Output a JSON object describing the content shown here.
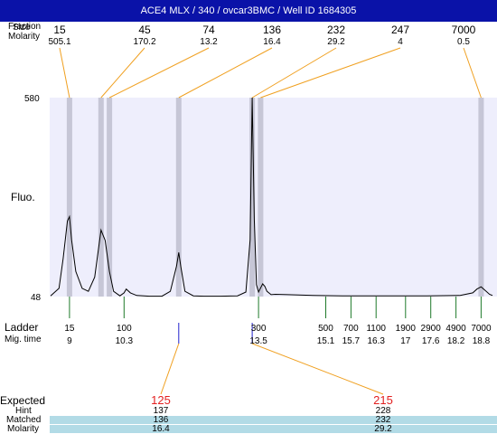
{
  "title": "ACE4 MLX / 340 / ovcar3BMC / Well ID 1684305",
  "header": {
    "row1_label_a": "Fraction",
    "row1_label_b": "Size",
    "row2_label": "Molarity"
  },
  "peaks": [
    {
      "size": "15",
      "molarity": "505.1"
    },
    {
      "size": "45",
      "molarity": "170.2"
    },
    {
      "size": "74",
      "molarity": "13.2"
    },
    {
      "size": "136",
      "molarity": "16.4"
    },
    {
      "size": "232",
      "molarity": "29.2"
    },
    {
      "size": "247",
      "molarity": "4"
    },
    {
      "size": "7000",
      "molarity": "0.5"
    }
  ],
  "y_axis": {
    "label": "Fluo.",
    "max": "580",
    "min": "48"
  },
  "ladder": {
    "label": "Ladder",
    "mig_label": "Mig. time",
    "items": [
      {
        "size": "15",
        "time": "9"
      },
      {
        "size": "100",
        "time": "10.3"
      },
      {
        "size": "300",
        "time": "13.5"
      },
      {
        "size": "500",
        "time": "15.1"
      },
      {
        "size": "700",
        "time": "15.7"
      },
      {
        "size": "1100",
        "time": "16.3"
      },
      {
        "size": "1900",
        "time": "17"
      },
      {
        "size": "2900",
        "time": "17.6"
      },
      {
        "size": "4900",
        "time": "18.2"
      },
      {
        "size": "7000",
        "time": "18.8"
      }
    ]
  },
  "table": {
    "expected_label": "Expected",
    "hint_label": "Hint",
    "matched_label": "Matched",
    "molarity_label": "Molarity",
    "cols": [
      {
        "expected": "125",
        "hint": "137",
        "matched": "136",
        "molarity": "16.4"
      },
      {
        "expected": "215",
        "hint": "228",
        "matched": "232",
        "molarity": "29.2"
      }
    ]
  },
  "colors": {
    "header_bg": "#0a12a8",
    "plot_bg": "#eeeefc",
    "peak_band": "#c6c6d6",
    "connector": "#f0a020",
    "ladder_tick": "#1f7a2a",
    "expected_mark": "#2222cc",
    "expected_text": "#e32020",
    "table_band": "#b2dbe6"
  },
  "chart_data": {
    "type": "line",
    "title": "ACE4 MLX / 340 / ovcar3BMC / Well ID 1684305",
    "ylabel": "Fluo.",
    "xlabel": "Mig. time",
    "ylim": [
      48,
      580
    ],
    "x": [
      8.55,
      8.75,
      8.85,
      8.95,
      9.0,
      9.05,
      9.15,
      9.3,
      9.45,
      9.6,
      9.75,
      9.85,
      9.95,
      10.05,
      10.2,
      10.3,
      10.35,
      10.45,
      10.6,
      10.9,
      11.2,
      11.4,
      11.55,
      11.6,
      11.65,
      11.75,
      11.95,
      12.2,
      12.6,
      13.0,
      13.2,
      13.3,
      13.35,
      13.4,
      13.45,
      13.5,
      13.6,
      13.65,
      13.7,
      13.8,
      13.9,
      14.2,
      14.8,
      15.5,
      16.5,
      17.5,
      18.3,
      18.6,
      18.7,
      18.8,
      18.9,
      19.0,
      19.07
    ],
    "series": [
      {
        "values": [
          50,
          70,
          150,
          250,
          262,
          200,
          115,
          70,
          62,
          100,
          226,
          198,
          115,
          62,
          50,
          58,
          68,
          58,
          51,
          49,
          49,
          62,
          130,
          166,
          128,
          62,
          50,
          49,
          49,
          50,
          60,
          200,
          580,
          255,
          80,
          60,
          82,
          75,
          62,
          53,
          54,
          53,
          51,
          50,
          50,
          50,
          51,
          58,
          68,
          74,
          64,
          54,
          51
        ]
      }
    ],
    "peaks": [
      {
        "size": 15,
        "molarity": 505.1
      },
      {
        "size": 45,
        "molarity": 170.2
      },
      {
        "size": 74,
        "molarity": 13.2
      },
      {
        "size": 136,
        "molarity": 16.4
      },
      {
        "size": 232,
        "molarity": 29.2
      },
      {
        "size": 247,
        "molarity": 4
      },
      {
        "size": 7000,
        "molarity": 0.5
      }
    ],
    "ladder": [
      {
        "size": 15,
        "mig_time": 9
      },
      {
        "size": 100,
        "mig_time": 10.3
      },
      {
        "size": 300,
        "mig_time": 13.5
      },
      {
        "size": 500,
        "mig_time": 15.1
      },
      {
        "size": 700,
        "mig_time": 15.7
      },
      {
        "size": 1100,
        "mig_time": 16.3
      },
      {
        "size": 1900,
        "mig_time": 17
      },
      {
        "size": 2900,
        "mig_time": 17.6
      },
      {
        "size": 4900,
        "mig_time": 18.2
      },
      {
        "size": 7000,
        "mig_time": 18.8
      }
    ],
    "expected": [
      {
        "expected": 125,
        "hint": 137,
        "matched": 136,
        "molarity": 16.4
      },
      {
        "expected": 215,
        "hint": 228,
        "matched": 232,
        "molarity": 29.2
      }
    ]
  }
}
